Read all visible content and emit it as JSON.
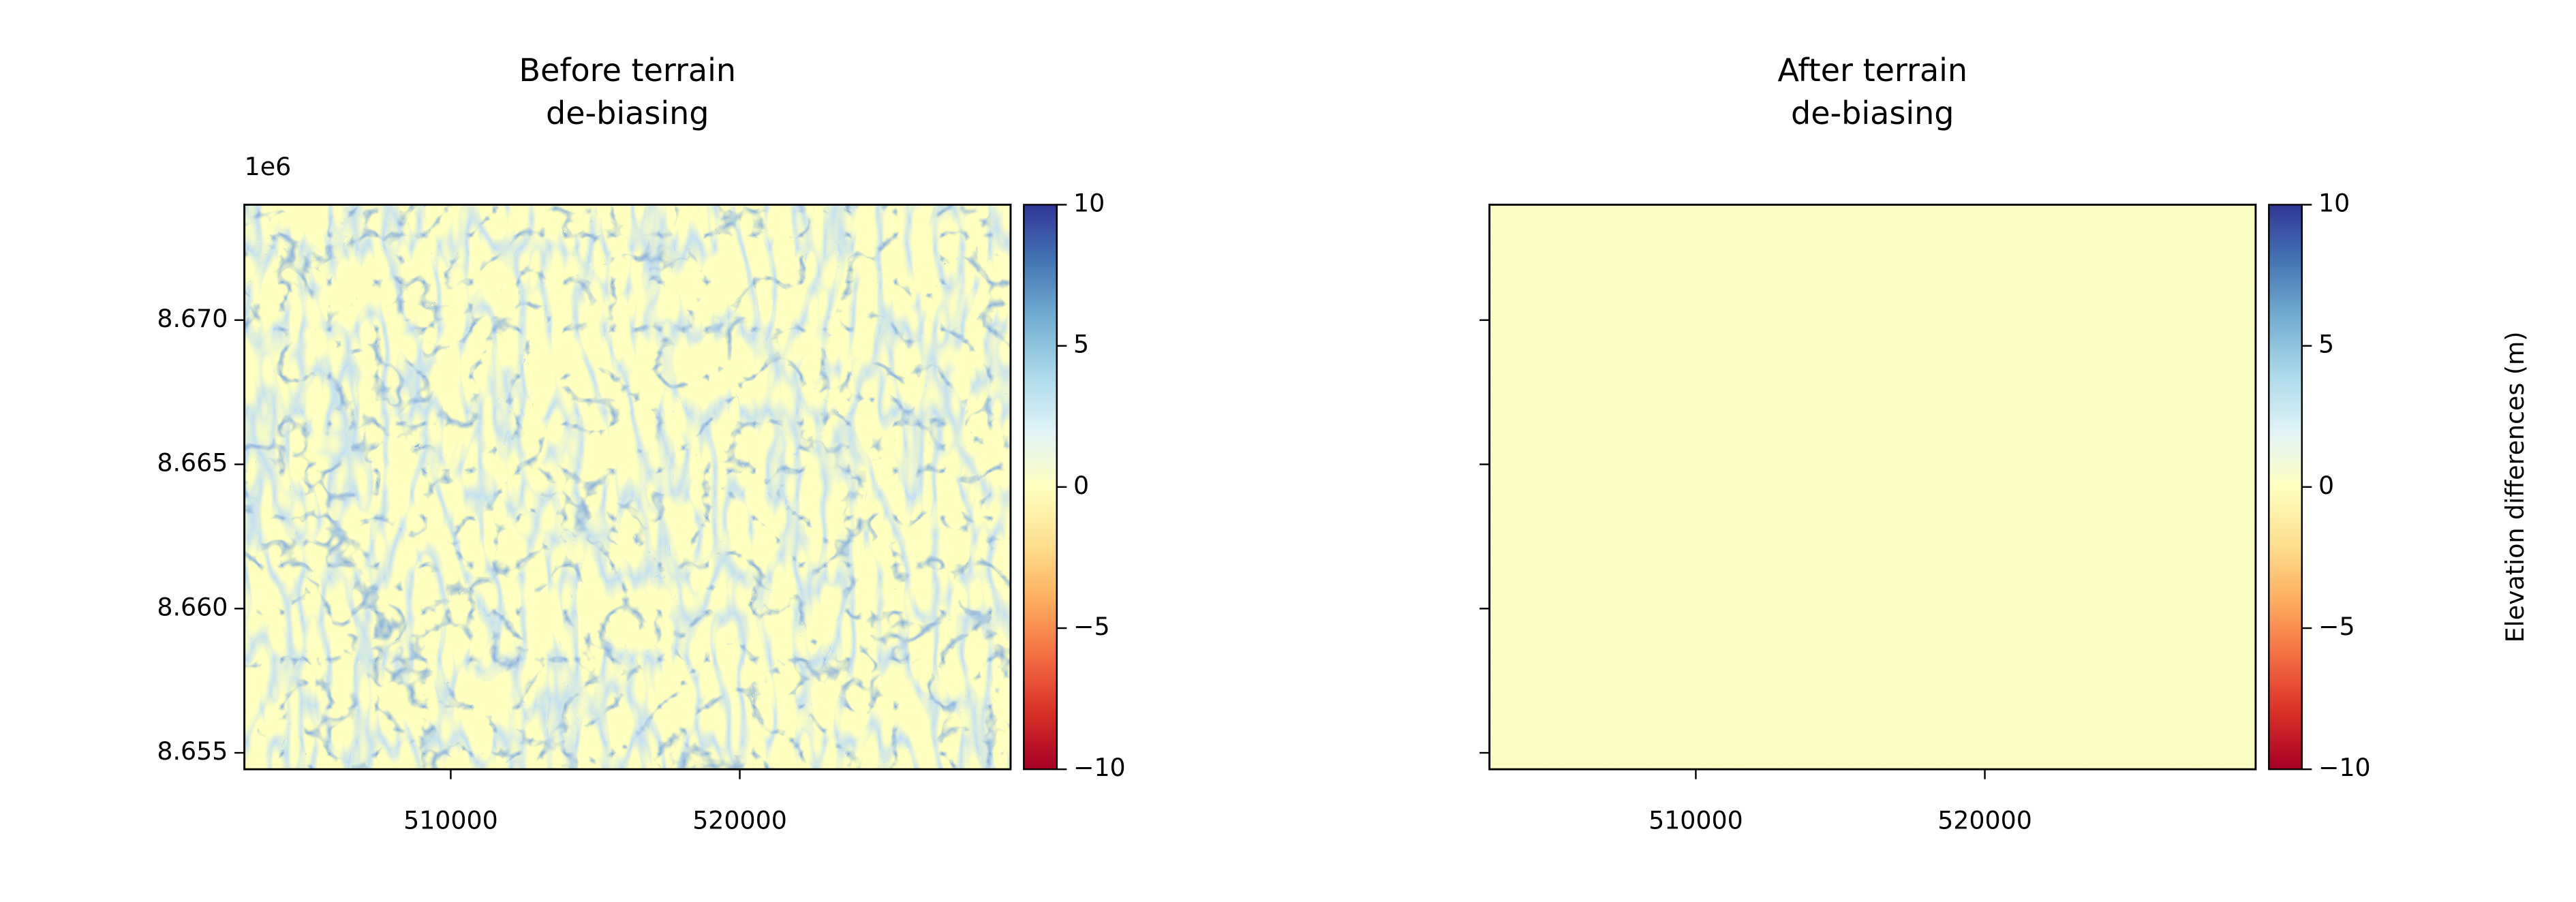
{
  "chart_data": [
    {
      "type": "image",
      "title": [
        "Before terrain",
        "de-biasing"
      ],
      "xlim": [
        502860,
        529370
      ],
      "xticks": [
        510000,
        520000
      ],
      "ylim": [
        8654430,
        8674000
      ],
      "yticks": [
        {
          "value": 8655000,
          "label": "8.655"
        },
        {
          "value": 8660000,
          "label": "8.660"
        },
        {
          "value": 8665000,
          "label": "8.665"
        },
        {
          "value": 8670000,
          "label": "8.670"
        }
      ],
      "y_offset_text": "1e6",
      "ytick_labels": true,
      "texture": "terrain",
      "colorbar": {
        "lim": [
          -10,
          10
        ],
        "ticks": [
          {
            "value": -10,
            "label": "−10"
          },
          {
            "value": -5,
            "label": "−5"
          },
          0,
          5,
          10
        ],
        "colors": [
          "#a50026",
          "#d73027",
          "#f46d43",
          "#fdae61",
          "#fee090",
          "#ffffbf",
          "#e0f3f8",
          "#abd9e9",
          "#74add1",
          "#4575b4",
          "#313695"
        ]
      }
    },
    {
      "type": "image",
      "title": [
        "After terrain",
        "de-biasing"
      ],
      "xlim": [
        502860,
        529370
      ],
      "xticks": [
        510000,
        520000
      ],
      "ylim": [
        8654430,
        8674000
      ],
      "yticks": [
        8655000,
        8660000,
        8665000,
        8670000
      ],
      "ytick_labels": false,
      "texture": "flat",
      "colorbar": {
        "lim": [
          -10,
          10
        ],
        "ticks": [
          {
            "value": -10,
            "label": "−10"
          },
          {
            "value": -5,
            "label": "−5"
          },
          0,
          5,
          10
        ],
        "colors": [
          "#a50026",
          "#d73027",
          "#f46d43",
          "#fdae61",
          "#fee090",
          "#ffffbf",
          "#e0f3f8",
          "#abd9e9",
          "#74add1",
          "#4575b4",
          "#313695"
        ],
        "label": "Elevation differences (m)"
      }
    }
  ]
}
